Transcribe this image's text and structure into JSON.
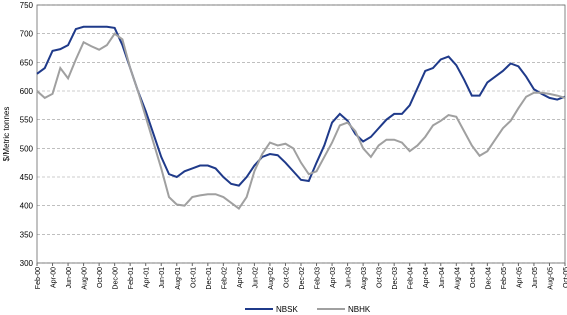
{
  "chart_data": {
    "type": "line",
    "y_label": "$/Metric tonnes",
    "categories": [
      "Feb-00",
      null,
      "Apr-00",
      null,
      "Jun-00",
      null,
      "Aug-00",
      null,
      "Oct-00",
      null,
      "Dec-00",
      null,
      "Feb-01",
      null,
      "Apr-01",
      null,
      "Jun-01",
      null,
      "Aug-01",
      null,
      "Oct-01",
      null,
      "Dec-01",
      null,
      "Feb-02",
      null,
      "Apr-02",
      null,
      "Jun-02",
      null,
      "Aug-02",
      null,
      "Oct-02",
      null,
      "Dec-02",
      null,
      "Feb-03",
      null,
      "Apr-03",
      null,
      "Jun-03",
      null,
      "Aug-03",
      null,
      "Oct-03",
      null,
      "Dec-03",
      null,
      "Feb-04",
      null,
      "Apr-04",
      null,
      "Jun-04",
      null,
      "Aug-04",
      null,
      "Oct-04",
      null,
      "Dec-04",
      null,
      "Feb-05",
      null,
      "Apr-05",
      null,
      "Jun-05",
      null,
      "Aug-05",
      null,
      "Oct-05"
    ],
    "series": [
      {
        "name": "NBSK",
        "color": "#1f3a8a",
        "values": [
          630,
          640,
          670,
          673,
          680,
          708,
          712,
          712,
          712,
          712,
          710,
          680,
          640,
          600,
          565,
          525,
          485,
          455,
          450,
          460,
          465,
          470,
          470,
          465,
          450,
          438,
          435,
          450,
          470,
          485,
          490,
          488,
          475,
          460,
          445,
          443,
          475,
          505,
          545,
          560,
          548,
          525,
          512,
          520,
          535,
          550,
          560,
          560,
          575,
          605,
          635,
          640,
          655,
          660,
          645,
          620,
          592,
          592,
          615,
          625,
          635,
          648,
          643,
          625,
          603,
          595,
          588,
          585,
          590
        ]
      },
      {
        "name": "NBHK",
        "color": "#a0a0a0",
        "values": [
          600,
          588,
          595,
          640,
          622,
          655,
          685,
          678,
          672,
          680,
          700,
          690,
          640,
          600,
          555,
          510,
          465,
          415,
          402,
          400,
          415,
          418,
          420,
          420,
          415,
          405,
          395,
          415,
          460,
          490,
          510,
          505,
          508,
          500,
          475,
          455,
          460,
          485,
          510,
          540,
          545,
          530,
          500,
          485,
          505,
          515,
          515,
          510,
          495,
          505,
          520,
          540,
          548,
          558,
          555,
          530,
          505,
          487,
          495,
          515,
          535,
          548,
          570,
          590,
          597,
          597,
          595,
          592,
          588
        ]
      }
    ],
    "ylim": [
      300,
      750
    ],
    "yticks": [
      300,
      350,
      400,
      450,
      500,
      550,
      600,
      650,
      700,
      750
    ],
    "grid": true
  }
}
